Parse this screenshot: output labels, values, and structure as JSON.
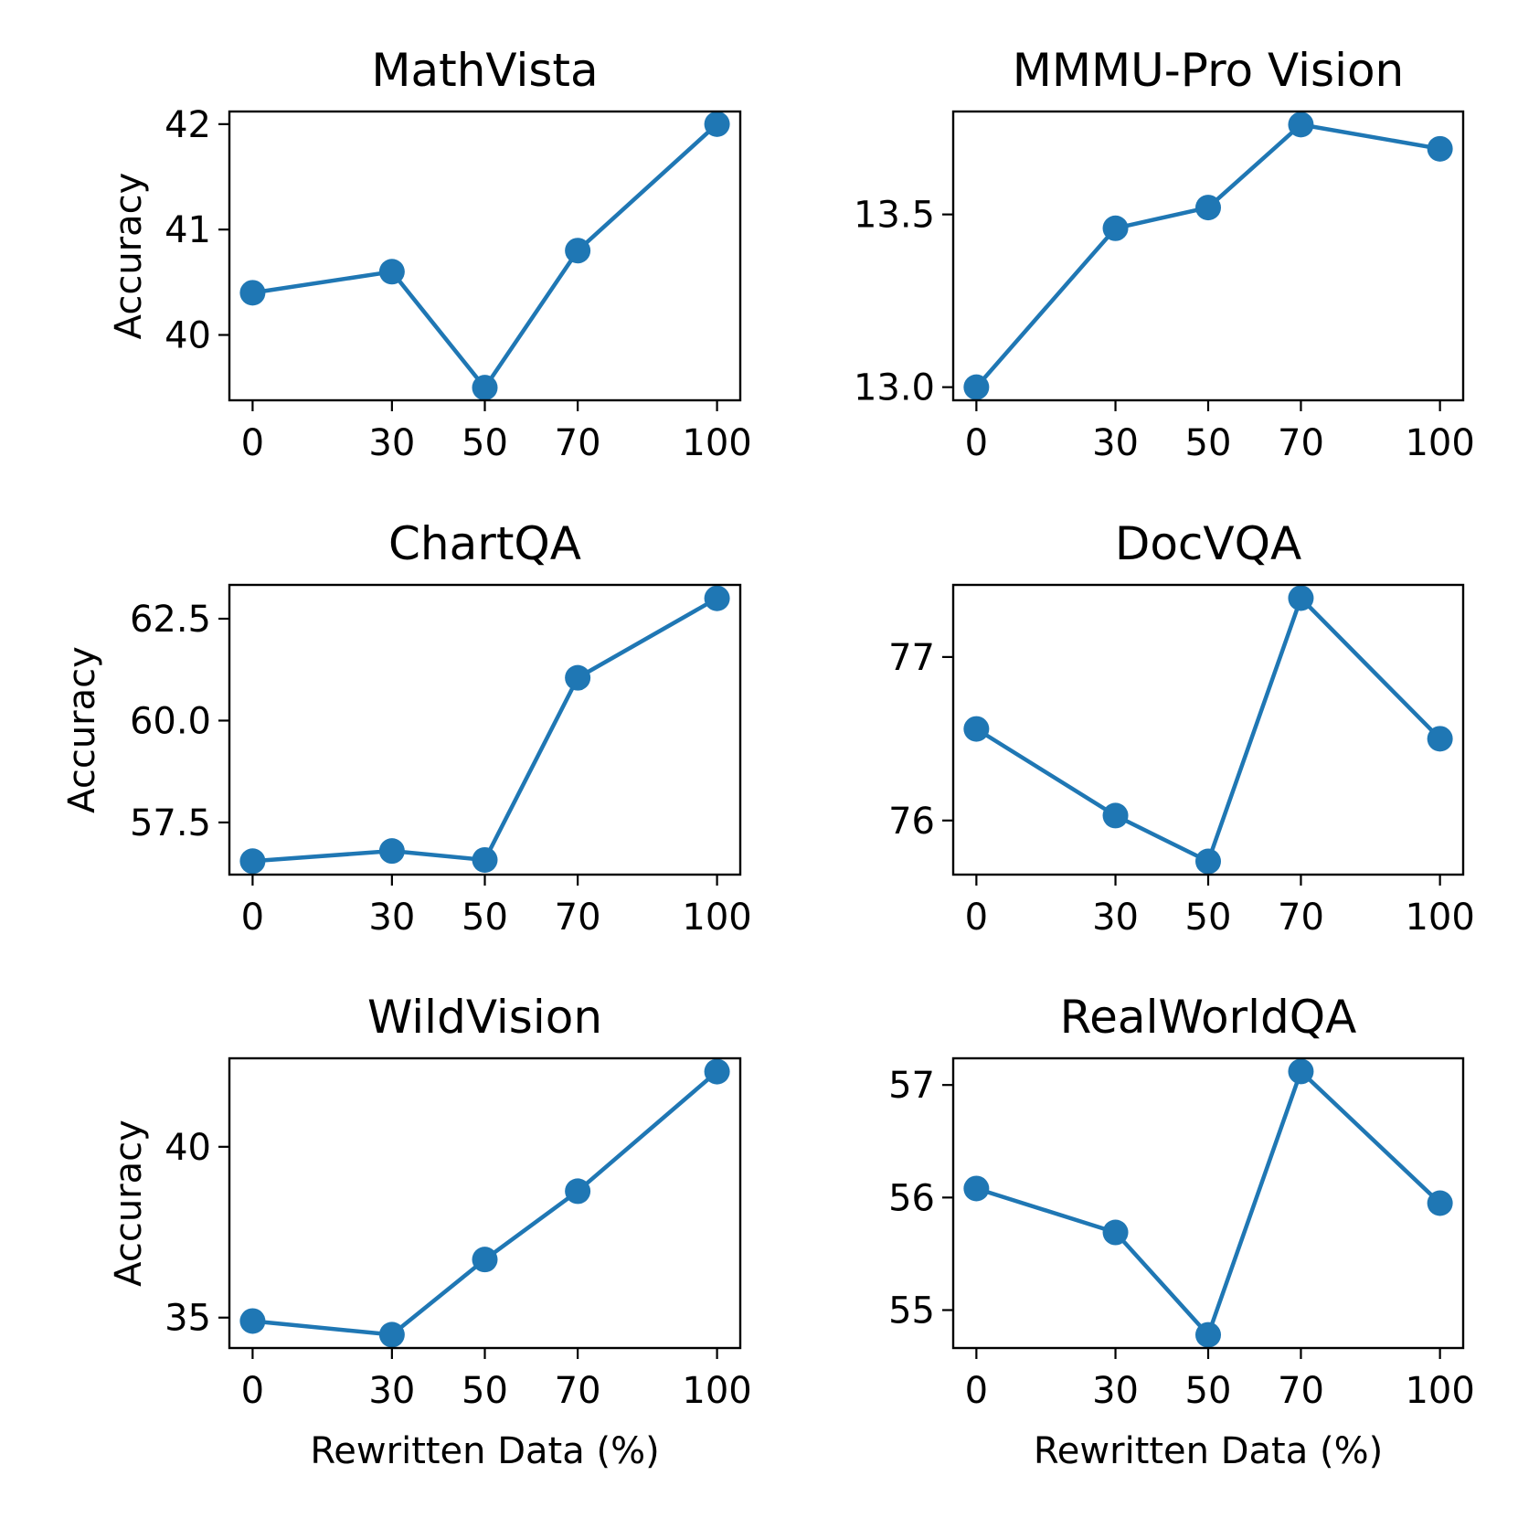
{
  "chart_data": [
    {
      "type": "line",
      "title": "MathVista",
      "xlabel": "",
      "ylabel": "Accuracy",
      "x": [
        0,
        30,
        50,
        70,
        100
      ],
      "xticks": [
        "0",
        "30",
        "50",
        "70",
        "100"
      ],
      "series": [
        {
          "name": "MathVista",
          "values": [
            40.4,
            40.6,
            39.5,
            40.8,
            42.0
          ],
          "color": "#1f77b4"
        }
      ],
      "ylim": [
        39.38,
        42.12
      ],
      "yticks": [
        40,
        41,
        42
      ],
      "ytick_labels": [
        "40",
        "41",
        "42"
      ]
    },
    {
      "type": "line",
      "title": "MMMU-Pro Vision",
      "xlabel": "",
      "ylabel": "",
      "x": [
        0,
        30,
        50,
        70,
        100
      ],
      "xticks": [
        "0",
        "30",
        "50",
        "70",
        "100"
      ],
      "series": [
        {
          "name": "MMMU-Pro Vision",
          "values": [
            13.0,
            13.46,
            13.52,
            13.76,
            13.69
          ],
          "color": "#1f77b4"
        }
      ],
      "ylim": [
        12.962,
        13.798
      ],
      "yticks": [
        13.0,
        13.5
      ],
      "ytick_labels": [
        "13.0",
        "13.5"
      ]
    },
    {
      "type": "line",
      "title": "ChartQA",
      "xlabel": "",
      "ylabel": "Accuracy",
      "x": [
        0,
        30,
        50,
        70,
        100
      ],
      "xticks": [
        "0",
        "30",
        "50",
        "70",
        "100"
      ],
      "series": [
        {
          "name": "ChartQA",
          "values": [
            56.55,
            56.8,
            56.58,
            61.05,
            63.0
          ],
          "color": "#1f77b4"
        }
      ],
      "ylim": [
        56.22,
        63.33
      ],
      "yticks": [
        57.5,
        60.0,
        62.5
      ],
      "ytick_labels": [
        "57.5",
        "60.0",
        "62.5"
      ]
    },
    {
      "type": "line",
      "title": "DocVQA",
      "xlabel": "",
      "ylabel": "",
      "x": [
        0,
        30,
        50,
        70,
        100
      ],
      "xticks": [
        "0",
        "30",
        "50",
        "70",
        "100"
      ],
      "series": [
        {
          "name": "DocVQA",
          "values": [
            76.56,
            76.03,
            75.75,
            77.36,
            76.5
          ],
          "color": "#1f77b4"
        }
      ],
      "ylim": [
        75.669,
        77.441
      ],
      "yticks": [
        76,
        77
      ],
      "ytick_labels": [
        "76",
        "77"
      ]
    },
    {
      "type": "line",
      "title": "WildVision",
      "xlabel": "Rewritten Data (%)",
      "ylabel": "Accuracy",
      "x": [
        0,
        30,
        50,
        70,
        100
      ],
      "xticks": [
        "0",
        "30",
        "50",
        "70",
        "100"
      ],
      "series": [
        {
          "name": "WildVision",
          "values": [
            34.9,
            34.5,
            36.7,
            38.7,
            42.2
          ],
          "color": "#1f77b4"
        }
      ],
      "ylim": [
        34.11,
        42.59
      ],
      "yticks": [
        35,
        40
      ],
      "ytick_labels": [
        "35",
        "40"
      ]
    },
    {
      "type": "line",
      "title": "RealWorldQA",
      "xlabel": "Rewritten Data (%)",
      "ylabel": "",
      "x": [
        0,
        30,
        50,
        70,
        100
      ],
      "xticks": [
        "0",
        "30",
        "50",
        "70",
        "100"
      ],
      "series": [
        {
          "name": "RealWorldQA",
          "values": [
            56.08,
            55.69,
            54.78,
            57.12,
            55.95
          ],
          "color": "#1f77b4"
        }
      ],
      "ylim": [
        54.663,
        57.237
      ],
      "yticks": [
        55,
        56,
        57
      ],
      "ytick_labels": [
        "55",
        "56",
        "57"
      ]
    }
  ]
}
